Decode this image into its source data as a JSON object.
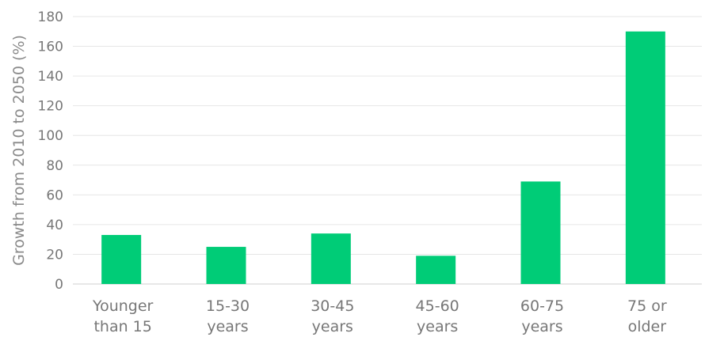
{
  "chart_data": {
    "type": "bar",
    "categories": [
      "Younger than 15",
      "15-30 years",
      "30-45 years",
      "45-60 years",
      "60-75 years",
      "75 or older"
    ],
    "category_lines": [
      [
        "Younger",
        "than 15"
      ],
      [
        "15-30",
        "years"
      ],
      [
        "30-45",
        "years"
      ],
      [
        "45-60",
        "years"
      ],
      [
        "60-75",
        "years"
      ],
      [
        "75 or",
        "older"
      ]
    ],
    "values": [
      33,
      25,
      34,
      19,
      69,
      170
    ],
    "ylabel": "Growth from 2010 to 2050 (%)",
    "xlabel": "",
    "title": "",
    "ylim": [
      0,
      180
    ],
    "yticks": [
      0,
      20,
      40,
      60,
      80,
      100,
      120,
      140,
      160,
      180
    ],
    "grid": true,
    "bar_color": "#00cc77",
    "grid_color": "#e6e6e6"
  }
}
